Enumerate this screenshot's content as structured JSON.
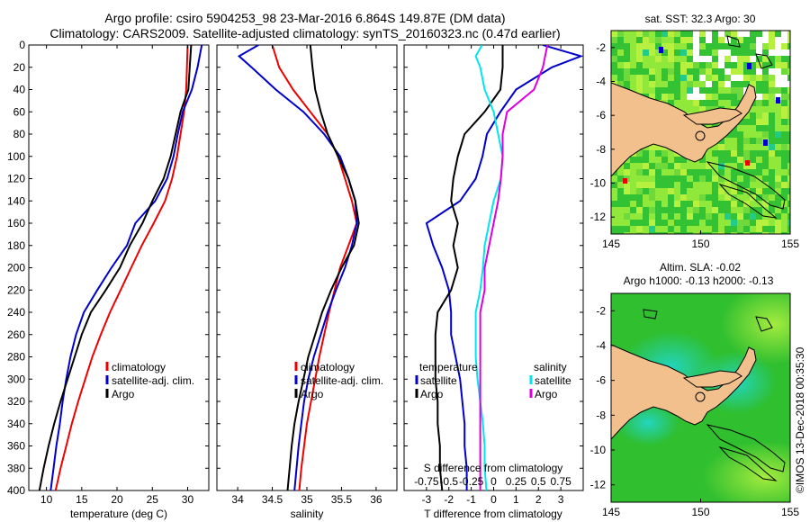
{
  "header": {
    "line1": "Argo profile: csiro 5904253_98 23-Mar-2016 6.864S 149.87E (DM data)",
    "line2": "Climatology: CARS2009. Satellite-adjusted climatology: synTS_20160323.nc (0.47d earlier)"
  },
  "watermark": "©IMOS 13-Dec-2018 00:35:30",
  "colors": {
    "climatology": "#ee0000",
    "satellite": "#0000cc",
    "argo": "#000000",
    "cyan": "#00e5ee",
    "magenta": "#dd00dd",
    "land": "#f2c08c",
    "sea_green": "#2fbf2f",
    "sea_bright": "#88e63a",
    "sea_cyan": "#22d6c6"
  },
  "chart_data": [
    {
      "type": "line",
      "name": "temperature",
      "xlabel": "temperature (deg C)",
      "ylabel": "",
      "xlim": [
        7.5,
        33
      ],
      "ylim": [
        400,
        0
      ],
      "xticks": [
        "10",
        "15",
        "20",
        "25",
        "30"
      ],
      "xtick_values": [
        10,
        15,
        20,
        25,
        30
      ],
      "yticks": [
        "0",
        "20",
        "40",
        "60",
        "80",
        "100",
        "120",
        "140",
        "160",
        "180",
        "200",
        "220",
        "240",
        "260",
        "280",
        "300",
        "320",
        "340",
        "360",
        "380",
        "400"
      ],
      "ytick_values": [
        0,
        20,
        40,
        60,
        80,
        100,
        120,
        140,
        160,
        180,
        200,
        220,
        240,
        260,
        280,
        300,
        320,
        340,
        360,
        380,
        400
      ],
      "legend": [
        "climatology",
        "satellite-adj. clim.",
        "Argo"
      ],
      "series": [
        {
          "name": "climatology",
          "color": "#ee0000",
          "depth": [
            0,
            20,
            40,
            60,
            80,
            100,
            120,
            140,
            160,
            180,
            200,
            220,
            240,
            260,
            280,
            300,
            320,
            340,
            360,
            380,
            400
          ],
          "values": [
            30,
            29.9,
            29.8,
            29.5,
            29,
            28.5,
            27.8,
            26.8,
            25.2,
            23.5,
            22,
            20.5,
            19,
            17.7,
            16.5,
            15.5,
            14.5,
            13.6,
            12.8,
            12,
            11.3
          ]
        },
        {
          "name": "satellite-adj. clim.",
          "color": "#0000cc",
          "depth": [
            0,
            20,
            40,
            60,
            80,
            100,
            120,
            140,
            160,
            180,
            200,
            220,
            240,
            260,
            280,
            300,
            320,
            340,
            360,
            380,
            400
          ],
          "values": [
            32,
            31.4,
            30.6,
            29.3,
            28.6,
            28,
            27.1,
            25.4,
            22.6,
            21.4,
            19.2,
            17.2,
            15.3,
            14.2,
            13.4,
            12.8,
            12.3,
            11.9,
            11.4,
            11,
            10.6
          ]
        },
        {
          "name": "Argo",
          "color": "#000000",
          "depth": [
            0,
            20,
            40,
            60,
            80,
            100,
            120,
            140,
            160,
            180,
            200,
            220,
            240,
            260,
            280,
            300,
            320,
            340,
            360,
            380,
            400
          ],
          "values": [
            30.5,
            30.3,
            30.1,
            29,
            28.3,
            27.6,
            26.6,
            25,
            23.6,
            21.8,
            20.4,
            18.4,
            16.3,
            15,
            14,
            13,
            12,
            11.1,
            10.3,
            9.6,
            9
          ]
        }
      ]
    },
    {
      "type": "line",
      "name": "salinity",
      "xlabel": "salinity",
      "ylabel": "",
      "xlim": [
        33.7,
        36.3
      ],
      "ylim": [
        400,
        0
      ],
      "xticks": [
        "34",
        "34.5",
        "35",
        "35.5",
        "36"
      ],
      "xtick_values": [
        34,
        34.5,
        35,
        35.5,
        36
      ],
      "legend": [
        "climatology",
        "satellite-adj. clim.",
        "Argo"
      ],
      "series": [
        {
          "name": "climatology",
          "color": "#ee0000",
          "depth": [
            0,
            20,
            40,
            60,
            80,
            100,
            120,
            140,
            160,
            180,
            200,
            220,
            240,
            260,
            280,
            300,
            320,
            340,
            360,
            380,
            400
          ],
          "values": [
            34.5,
            34.6,
            34.8,
            35.05,
            35.3,
            35.45,
            35.55,
            35.65,
            35.72,
            35.6,
            35.48,
            35.4,
            35.32,
            35.25,
            35.18,
            35.12,
            35.06,
            35.0,
            34.96,
            34.92,
            34.89
          ]
        },
        {
          "name": "satellite-adj. clim.",
          "color": "#0000cc",
          "depth": [
            0,
            10,
            20,
            40,
            60,
            80,
            100,
            120,
            140,
            160,
            180,
            200,
            220,
            240,
            260,
            280,
            300,
            320,
            340,
            360,
            380,
            400
          ],
          "values": [
            34.3,
            34.02,
            34.2,
            34.55,
            34.95,
            35.25,
            35.48,
            35.6,
            35.7,
            35.72,
            35.65,
            35.55,
            35.42,
            35.3,
            35.2,
            35.1,
            35.02,
            34.96,
            34.92,
            34.88,
            34.85,
            34.82
          ]
        },
        {
          "name": "Argo",
          "color": "#000000",
          "depth": [
            0,
            20,
            40,
            60,
            80,
            100,
            120,
            140,
            160,
            180,
            200,
            220,
            240,
            260,
            280,
            300,
            320,
            340,
            360,
            380,
            400
          ],
          "values": [
            35.05,
            35.08,
            35.12,
            35.2,
            35.3,
            35.45,
            35.6,
            35.7,
            35.75,
            35.68,
            35.5,
            35.35,
            35.22,
            35.12,
            35.02,
            34.95,
            34.88,
            34.82,
            34.78,
            34.75,
            34.72
          ]
        }
      ]
    },
    {
      "type": "line",
      "name": "differences",
      "xlabel": "T difference from climatology",
      "top_axis_label": "S difference from climatology",
      "xlim": [
        -4,
        4
      ],
      "ylim": [
        400,
        0
      ],
      "xticks": [
        "-3",
        "-2",
        "-1",
        "0",
        "1",
        "2",
        "3"
      ],
      "xtick_values": [
        -3,
        -2,
        -1,
        0,
        1,
        2,
        3
      ],
      "top_ticks": [
        "-0.75",
        "-0.5",
        "-0.25",
        "0",
        "0.25",
        "0.5",
        "0.75"
      ],
      "top_tick_values": [
        -0.75,
        -0.5,
        -0.25,
        0,
        0.25,
        0.5,
        0.75
      ],
      "legend_title_left": "temperature",
      "legend_title_right": "salinity",
      "legend_left": [
        "satellite",
        "Argo"
      ],
      "legend_right": [
        "satellite",
        "Argo"
      ],
      "series": [
        {
          "name": "T satellite",
          "color": "#0000cc",
          "depth": [
            0,
            10,
            20,
            40,
            60,
            80,
            100,
            120,
            140,
            160,
            180,
            200,
            220,
            240,
            260,
            280,
            300,
            320,
            340,
            360,
            380,
            400
          ],
          "values": [
            2.2,
            3.9,
            2.6,
            1.0,
            0.3,
            -0.3,
            -0.5,
            -0.8,
            -1.5,
            -3.0,
            -2.7,
            -2.3,
            -2.0,
            -1.9,
            -1.9,
            -1.7,
            -1.5,
            -1.4,
            -1.3,
            -1.3,
            -1.2,
            -1.2
          ]
        },
        {
          "name": "T Argo",
          "color": "#000000",
          "depth": [
            0,
            20,
            40,
            60,
            80,
            100,
            120,
            140,
            160,
            180,
            200,
            220,
            240,
            260,
            280,
            300,
            320,
            340,
            360,
            380,
            400
          ],
          "values": [
            0.4,
            0.4,
            0.3,
            -0.4,
            -1.3,
            -1.6,
            -1.8,
            -1.9,
            -1.6,
            -1.8,
            -1.6,
            -1.9,
            -2.5,
            -2.6,
            -2.6,
            -2.6,
            -2.5,
            -2.5,
            -2.4,
            -2.4,
            -2.3
          ]
        },
        {
          "name": "S satellite",
          "color": "#00e5ee",
          "depth": [
            0,
            10,
            20,
            40,
            60,
            80,
            100,
            120,
            140,
            160,
            180,
            200,
            220,
            240,
            260,
            280,
            300,
            320,
            340,
            360,
            380,
            400
          ],
          "values": [
            -0.13,
            -0.2,
            -0.15,
            -0.1,
            0.0,
            0.05,
            0.1,
            0.08,
            0.0,
            -0.05,
            -0.1,
            -0.12,
            -0.15,
            -0.2,
            -0.2,
            -0.2,
            -0.18,
            -0.15,
            -0.12,
            -0.1,
            -0.1,
            -0.08
          ]
        },
        {
          "name": "S Argo",
          "color": "#dd00dd",
          "depth": [
            0,
            20,
            40,
            60,
            80,
            100,
            120,
            140,
            160,
            180,
            200,
            220,
            240,
            260,
            280,
            300,
            320,
            340,
            360,
            380,
            400
          ],
          "values": [
            0.6,
            0.55,
            0.45,
            0.15,
            0.1,
            0.1,
            0.08,
            0.05,
            0.0,
            -0.05,
            -0.1,
            -0.1,
            -0.15,
            -0.15,
            -0.15,
            -0.15,
            -0.15,
            -0.15,
            -0.15,
            -0.15,
            -0.15
          ]
        }
      ]
    },
    {
      "type": "heatmap",
      "name": "sat-sst-map",
      "title": "sat. SST: 32.3  Argo: 30",
      "xlim": [
        145,
        155
      ],
      "ylim": [
        -13,
        -1
      ],
      "xticks": [
        "145",
        "150",
        "155"
      ],
      "xtick_values": [
        145,
        150,
        155
      ],
      "yticks": [
        "-2",
        "-4",
        "-6",
        "-8",
        "-10",
        "-12"
      ],
      "ytick_values": [
        -2,
        -4,
        -6,
        -8,
        -10,
        -12
      ],
      "profile_marker": {
        "lon": 149.87,
        "lat": -6.864
      }
    },
    {
      "type": "heatmap",
      "name": "altim-sla-map",
      "title": "Altim. SLA: -0.02",
      "subtitle": "Argo h1000: -0.13  h2000: -0.13",
      "xlim": [
        145,
        155
      ],
      "ylim": [
        -13,
        -1
      ],
      "xticks": [
        "145",
        "150",
        "155"
      ],
      "xtick_values": [
        145,
        150,
        155
      ],
      "yticks": [
        "-2",
        "-4",
        "-6",
        "-8",
        "-10",
        "-12"
      ],
      "ytick_values": [
        -2,
        -4,
        -6,
        -8,
        -10,
        -12
      ],
      "profile_marker": {
        "lon": 149.87,
        "lat": -6.864
      }
    }
  ]
}
